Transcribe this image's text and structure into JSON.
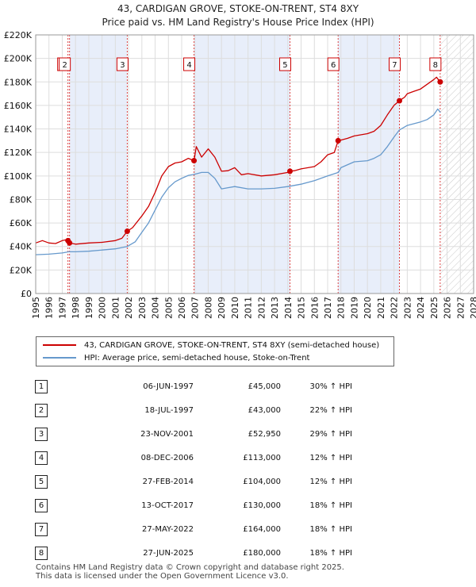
{
  "title_line1": "43, CARDIGAN GROVE, STOKE-ON-TRENT, ST4 8XY",
  "title_line2": "Price paid vs. HM Land Registry's House Price Index (HPI)",
  "chart_data": {
    "type": "line",
    "xlim": [
      1995,
      2028
    ],
    "ylim": [
      0,
      220000
    ],
    "y_ticks": [
      0,
      20000,
      40000,
      60000,
      80000,
      100000,
      120000,
      140000,
      160000,
      180000,
      200000,
      220000
    ],
    "y_tick_labels": [
      "£0",
      "£20K",
      "£40K",
      "£60K",
      "£80K",
      "£100K",
      "£120K",
      "£140K",
      "£160K",
      "£180K",
      "£200K",
      "£220K"
    ],
    "x_ticks": [
      1995,
      1996,
      1997,
      1998,
      1999,
      2000,
      2001,
      2002,
      2003,
      2004,
      2005,
      2006,
      2007,
      2008,
      2009,
      2010,
      2011,
      2012,
      2013,
      2014,
      2015,
      2016,
      2017,
      2018,
      2019,
      2020,
      2021,
      2022,
      2023,
      2024,
      2025,
      2026,
      2027,
      2028
    ],
    "series": [
      {
        "name": "43, CARDIGAN GROVE, STOKE-ON-TRENT, ST4 8XY (semi-detached house)",
        "color": "#cc0000",
        "x": [
          1995,
          1995.5,
          1996,
          1996.5,
          1997,
          1997.45,
          1997.55,
          1998,
          1999,
          2000,
          2001,
          2001.5,
          2001.9,
          2002.3,
          2003,
          2003.5,
          2004,
          2004.5,
          2005,
          2005.5,
          2006,
          2006.5,
          2006.93,
          2007.1,
          2007.5,
          2008,
          2008.5,
          2009,
          2009.5,
          2010,
          2010.5,
          2011,
          2012,
          2013,
          2014,
          2014.16,
          2014.5,
          2015,
          2016,
          2016.5,
          2017,
          2017.5,
          2017.79,
          2018,
          2018.5,
          2019,
          2020,
          2020.5,
          2021,
          2021.5,
          2022,
          2022.41,
          2022.8,
          2023,
          2023.5,
          2024,
          2024.5,
          2025,
          2025.2,
          2025.48
        ],
        "y": [
          43000,
          45000,
          43000,
          42500,
          45000,
          46000,
          43000,
          42000,
          43000,
          43500,
          45000,
          47000,
          52950,
          56000,
          66000,
          74000,
          86000,
          100000,
          108000,
          111000,
          112000,
          115000,
          113000,
          125000,
          116000,
          123000,
          116000,
          104000,
          104500,
          107000,
          101000,
          102000,
          100000,
          101000,
          103000,
          104000,
          104500,
          106000,
          108000,
          112000,
          118000,
          120000,
          130000,
          130500,
          132000,
          134000,
          136000,
          138000,
          143000,
          152000,
          160000,
          164000,
          167000,
          170000,
          172000,
          174000,
          178000,
          182000,
          184000,
          180000
        ]
      },
      {
        "name": "HPI: Average price, semi-detached house, Stoke-on-Trent",
        "color": "#6699cc",
        "x": [
          1995,
          1996,
          1997,
          1997.5,
          1998,
          1999,
          2000,
          2001,
          2001.9,
          2002.5,
          2003,
          2003.5,
          2004,
          2004.5,
          2005,
          2005.5,
          2006,
          2006.5,
          2007,
          2007.5,
          2008,
          2008.5,
          2009,
          2009.5,
          2010,
          2011,
          2012,
          2013,
          2014,
          2014.5,
          2015,
          2016,
          2017,
          2017.8,
          2018,
          2019,
          2020,
          2020.5,
          2021,
          2021.5,
          2022,
          2022.4,
          2023,
          2024,
          2024.5,
          2025,
          2025.3,
          2025.5
        ],
        "y": [
          33000,
          33500,
          34500,
          35500,
          35500,
          36000,
          37000,
          38000,
          40000,
          44000,
          52000,
          60000,
          71000,
          82000,
          90000,
          95000,
          98000,
          100500,
          101500,
          103000,
          103000,
          98000,
          89000,
          90000,
          91000,
          89000,
          89000,
          89500,
          91000,
          92000,
          93000,
          96000,
          100000,
          103000,
          107000,
          112000,
          113000,
          115000,
          118000,
          125000,
          133000,
          139000,
          143000,
          146000,
          148000,
          152000,
          157000,
          154000
        ]
      }
    ],
    "sales": [
      {
        "label": "1",
        "x": 1997.43,
        "y": 45000
      },
      {
        "label": "2",
        "x": 1997.55,
        "y": 43000
      },
      {
        "label": "3",
        "x": 2001.9,
        "y": 52950
      },
      {
        "label": "4",
        "x": 2006.93,
        "y": 113000
      },
      {
        "label": "5",
        "x": 2014.16,
        "y": 104000
      },
      {
        "label": "6",
        "x": 2017.79,
        "y": 130000
      },
      {
        "label": "7",
        "x": 2022.41,
        "y": 164000
      },
      {
        "label": "8",
        "x": 2025.48,
        "y": 180000
      }
    ],
    "shaded_spans": [
      [
        1997.55,
        2001.9
      ],
      [
        2006.93,
        2014.16
      ],
      [
        2017.79,
        2022.41
      ]
    ],
    "forecast_start": 2025.5
  },
  "legend": {
    "property": "43, CARDIGAN GROVE, STOKE-ON-TRENT, ST4 8XY (semi-detached house)",
    "hpi": "HPI: Average price, semi-detached house, Stoke-on-Trent"
  },
  "transactions": [
    {
      "num": "1",
      "date": "06-JUN-1997",
      "price": "£45,000",
      "hpi": "30% ↑ HPI"
    },
    {
      "num": "2",
      "date": "18-JUL-1997",
      "price": "£43,000",
      "hpi": "22% ↑ HPI"
    },
    {
      "num": "3",
      "date": "23-NOV-2001",
      "price": "£52,950",
      "hpi": "29% ↑ HPI"
    },
    {
      "num": "4",
      "date": "08-DEC-2006",
      "price": "£113,000",
      "hpi": "12% ↑ HPI"
    },
    {
      "num": "5",
      "date": "27-FEB-2014",
      "price": "£104,000",
      "hpi": "12% ↑ HPI"
    },
    {
      "num": "6",
      "date": "13-OCT-2017",
      "price": "£130,000",
      "hpi": "18% ↑ HPI"
    },
    {
      "num": "7",
      "date": "27-MAY-2022",
      "price": "£164,000",
      "hpi": "18% ↑ HPI"
    },
    {
      "num": "8",
      "date": "27-JUN-2025",
      "price": "£180,000",
      "hpi": "18% ↑ HPI"
    }
  ],
  "footer_line1": "Contains HM Land Registry data © Crown copyright and database right 2025.",
  "footer_line2": "This data is licensed under the Open Government Licence v3.0.",
  "colors": {
    "property": "#cc0000",
    "hpi": "#6699cc",
    "shade": "#e8eefa"
  }
}
